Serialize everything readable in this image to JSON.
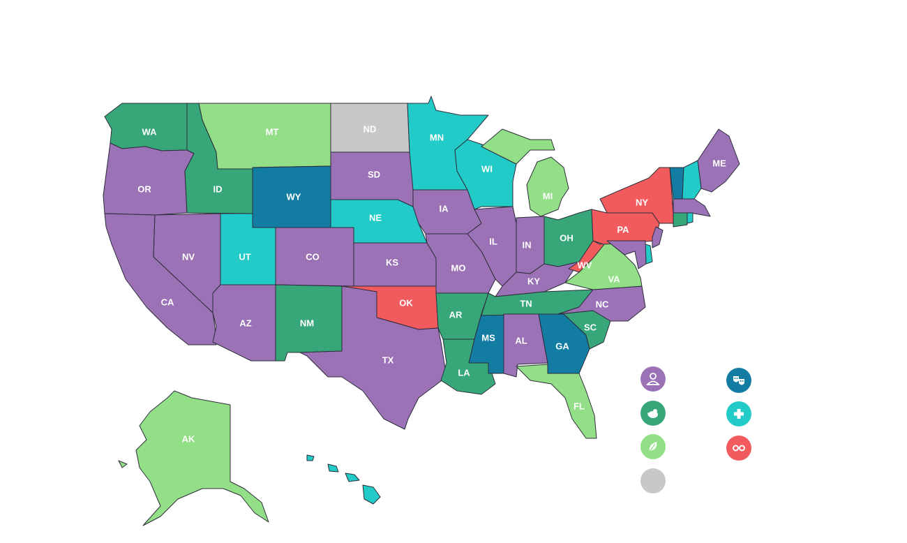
{
  "colors": {
    "purple": "#9b72b5",
    "dark_green": "#37a77a",
    "light_green": "#93df87",
    "gray": "#c8c8c8",
    "teal": "#22cbc8",
    "dark_blue": "#127ca3",
    "red": "#f25b5e"
  },
  "states": [
    {
      "id": "WA",
      "label": "WA",
      "cat": "dark_green"
    },
    {
      "id": "OR",
      "label": "OR",
      "cat": "purple"
    },
    {
      "id": "CA",
      "label": "CA",
      "cat": "purple"
    },
    {
      "id": "NV",
      "label": "NV",
      "cat": "purple"
    },
    {
      "id": "ID",
      "label": "ID",
      "cat": "dark_green"
    },
    {
      "id": "MT",
      "label": "MT",
      "cat": "light_green"
    },
    {
      "id": "WY",
      "label": "WY",
      "cat": "dark_blue"
    },
    {
      "id": "UT",
      "label": "UT",
      "cat": "teal"
    },
    {
      "id": "AZ",
      "label": "AZ",
      "cat": "purple"
    },
    {
      "id": "CO",
      "label": "CO",
      "cat": "purple"
    },
    {
      "id": "NM",
      "label": "NM",
      "cat": "dark_green"
    },
    {
      "id": "ND",
      "label": "ND",
      "cat": "gray"
    },
    {
      "id": "SD",
      "label": "SD",
      "cat": "purple"
    },
    {
      "id": "NE",
      "label": "NE",
      "cat": "teal"
    },
    {
      "id": "KS",
      "label": "KS",
      "cat": "purple"
    },
    {
      "id": "OK",
      "label": "OK",
      "cat": "red"
    },
    {
      "id": "TX",
      "label": "TX",
      "cat": "purple"
    },
    {
      "id": "MN",
      "label": "MN",
      "cat": "teal"
    },
    {
      "id": "IA",
      "label": "IA",
      "cat": "purple"
    },
    {
      "id": "MO",
      "label": "MO",
      "cat": "purple"
    },
    {
      "id": "AR",
      "label": "AR",
      "cat": "dark_green"
    },
    {
      "id": "LA",
      "label": "LA",
      "cat": "dark_green"
    },
    {
      "id": "WI",
      "label": "WI",
      "cat": "teal"
    },
    {
      "id": "IL",
      "label": "IL",
      "cat": "purple"
    },
    {
      "id": "MS",
      "label": "MS",
      "cat": "dark_blue"
    },
    {
      "id": "MI",
      "label": "MI",
      "cat": "light_green"
    },
    {
      "id": "IN",
      "label": "IN",
      "cat": "purple"
    },
    {
      "id": "KY",
      "label": "KY",
      "cat": "purple"
    },
    {
      "id": "TN",
      "label": "TN",
      "cat": "dark_green"
    },
    {
      "id": "AL",
      "label": "AL",
      "cat": "purple"
    },
    {
      "id": "OH",
      "label": "OH",
      "cat": "dark_green"
    },
    {
      "id": "GA",
      "label": "GA",
      "cat": "dark_blue"
    },
    {
      "id": "FL",
      "label": "FL",
      "cat": "light_green"
    },
    {
      "id": "SC",
      "label": "SC",
      "cat": "dark_green"
    },
    {
      "id": "NC",
      "label": "NC",
      "cat": "purple"
    },
    {
      "id": "VA",
      "label": "VA",
      "cat": "light_green"
    },
    {
      "id": "WV",
      "label": "WV",
      "cat": "red"
    },
    {
      "id": "PA",
      "label": "PA",
      "cat": "red"
    },
    {
      "id": "NY",
      "label": "NY",
      "cat": "red"
    },
    {
      "id": "ME",
      "label": "ME",
      "cat": "purple"
    },
    {
      "id": "VT",
      "label": "",
      "cat": "dark_blue"
    },
    {
      "id": "NH",
      "label": "",
      "cat": "teal"
    },
    {
      "id": "MA",
      "label": "",
      "cat": "purple"
    },
    {
      "id": "CT",
      "label": "",
      "cat": "dark_green"
    },
    {
      "id": "RI",
      "label": "",
      "cat": "teal"
    },
    {
      "id": "NJ",
      "label": "",
      "cat": "purple"
    },
    {
      "id": "DE",
      "label": "",
      "cat": "teal"
    },
    {
      "id": "MD",
      "label": "",
      "cat": "purple"
    },
    {
      "id": "AK",
      "label": "AK",
      "cat": "light_green"
    },
    {
      "id": "HI",
      "label": "",
      "cat": "teal"
    }
  ],
  "legend": [
    {
      "cat": "purple",
      "icon": "person-icon"
    },
    {
      "cat": "dark_green",
      "icon": "bird-icon"
    },
    {
      "cat": "light_green",
      "icon": "leaf-icon"
    },
    {
      "cat": "gray",
      "icon": "none"
    },
    {
      "cat": "dark_blue",
      "icon": "theater-masks-icon"
    },
    {
      "cat": "teal",
      "icon": "plus-icon"
    },
    {
      "cat": "red",
      "icon": "glasses-icon"
    }
  ]
}
